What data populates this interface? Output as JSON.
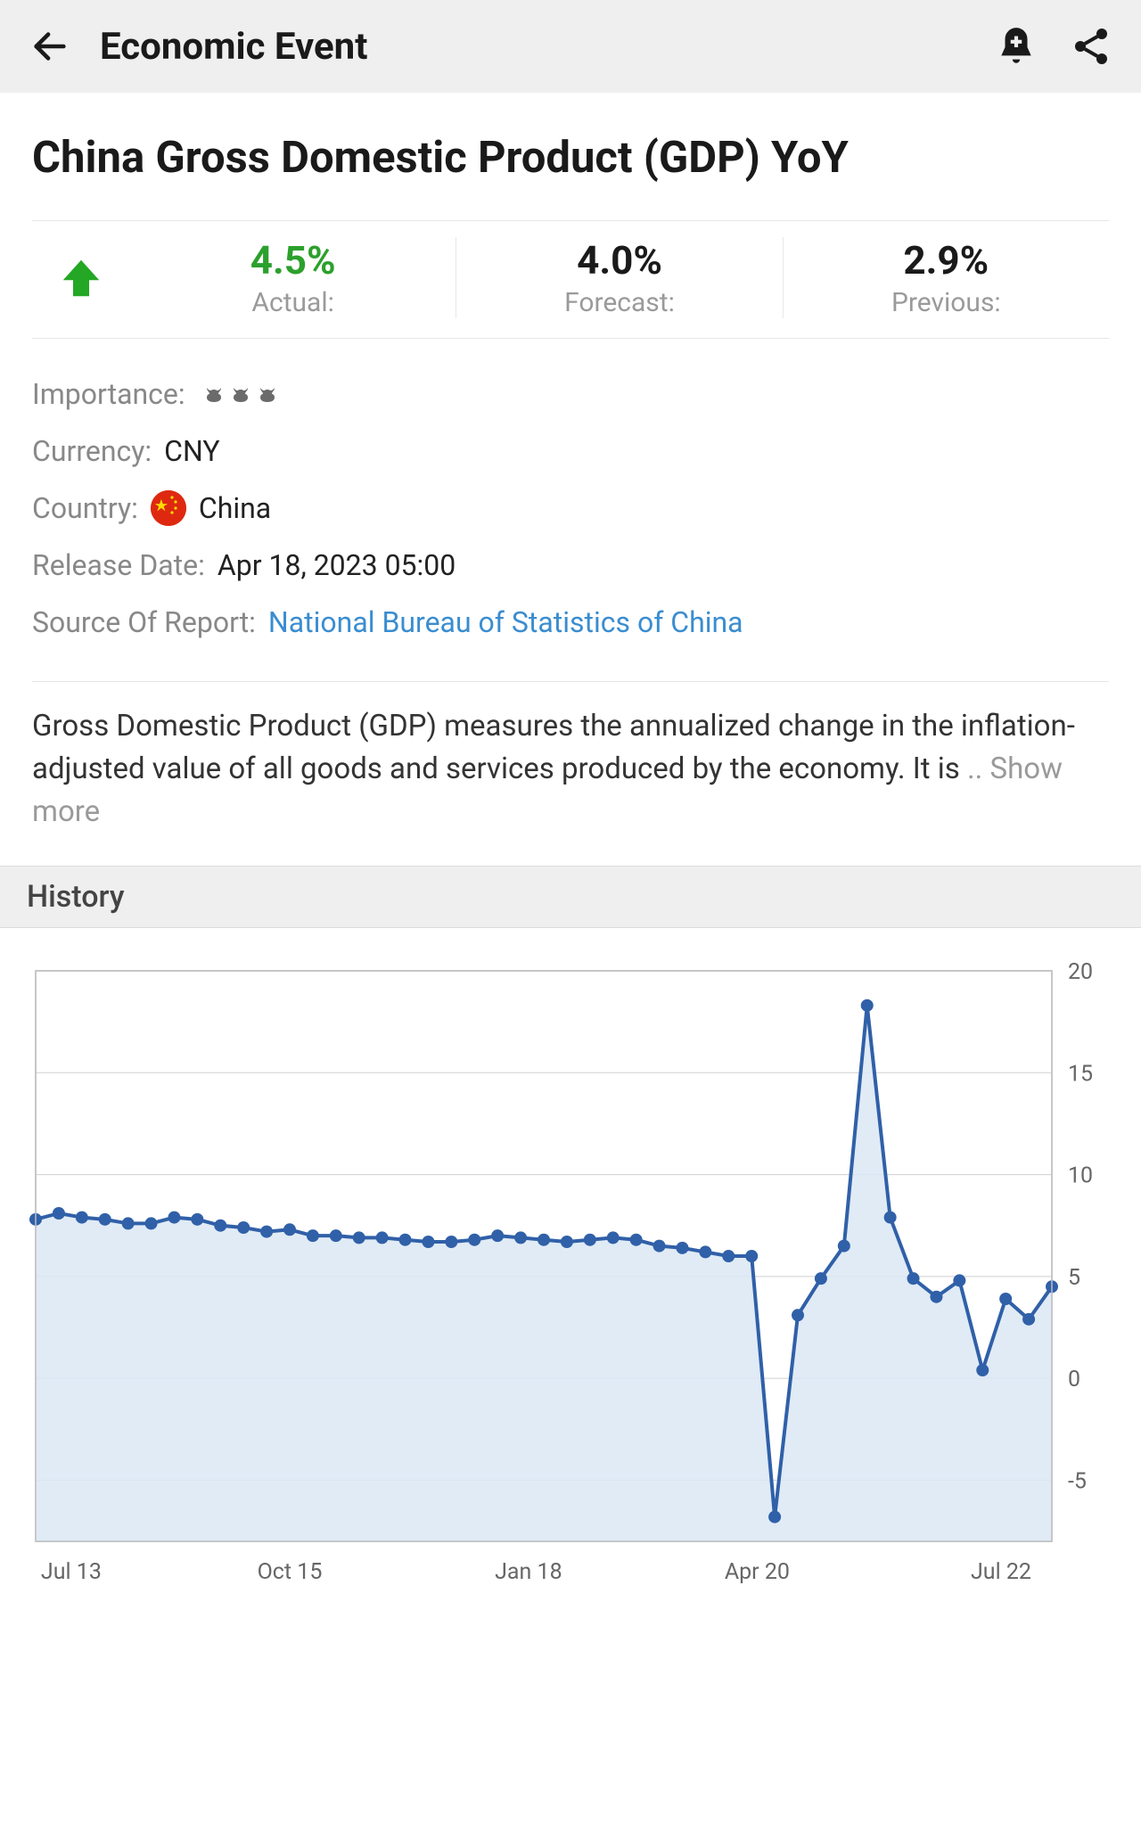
{
  "header": {
    "title": "Economic Event"
  },
  "page": {
    "title": "China Gross Domestic Product (GDP) YoY"
  },
  "stats": {
    "direction": "up",
    "arrow_color": "#24a724",
    "actual": {
      "value": "4.5%",
      "label": "Actual:",
      "color": "#2ca02c"
    },
    "forecast": {
      "value": "4.0%",
      "label": "Forecast:",
      "color": "#1a1a1a"
    },
    "previous": {
      "value": "2.9%",
      "label": "Previous:",
      "color": "#1a1a1a"
    }
  },
  "meta": {
    "importance_label": "Importance:",
    "importance_level": 3,
    "currency_label": "Currency:",
    "currency": "CNY",
    "country_label": "Country:",
    "country": "China",
    "release_label": "Release Date:",
    "release": "Apr 18, 2023 05:00",
    "source_label": "Source Of Report:",
    "source": "National Bureau of Statistics of China",
    "link_color": "#3a8dd0"
  },
  "description": {
    "text": "Gross Domestic Product (GDP) measures the annualized change in the inflation-adjusted value of all goods and services produced by the economy. It is ",
    "show_more": ".. Show more"
  },
  "history": {
    "title": "History",
    "chart": {
      "type": "area-line",
      "line_color": "#3060a8",
      "fill_color": "#dbe7f5",
      "marker_color": "#3060a8",
      "marker_radius": 7,
      "line_width": 4,
      "grid_color": "#cfcfcf",
      "border_color": "#bfbfbf",
      "background": "#ffffff",
      "axis_label_color": "#666666",
      "axis_fontsize": 25,
      "x_tick_labels": [
        "Jul 13",
        "Oct 15",
        "Jan 18",
        "Apr 20",
        "Jul 22"
      ],
      "x_tick_positions": [
        0.035,
        0.25,
        0.485,
        0.71,
        0.95
      ],
      "y_ticks": [
        -5,
        0,
        5,
        10,
        15,
        20
      ],
      "y_min": -8,
      "y_max": 20,
      "values": [
        7.8,
        8.1,
        7.9,
        7.8,
        7.6,
        7.6,
        7.9,
        7.8,
        7.5,
        7.4,
        7.2,
        7.3,
        7.0,
        7.0,
        6.9,
        6.9,
        6.8,
        6.7,
        6.7,
        6.8,
        7.0,
        6.9,
        6.8,
        6.7,
        6.8,
        6.9,
        6.8,
        6.5,
        6.4,
        6.2,
        6.0,
        6.0,
        -6.8,
        3.1,
        4.9,
        6.5,
        18.3,
        7.9,
        4.9,
        4.0,
        4.8,
        0.4,
        3.9,
        2.9,
        4.5
      ]
    }
  }
}
